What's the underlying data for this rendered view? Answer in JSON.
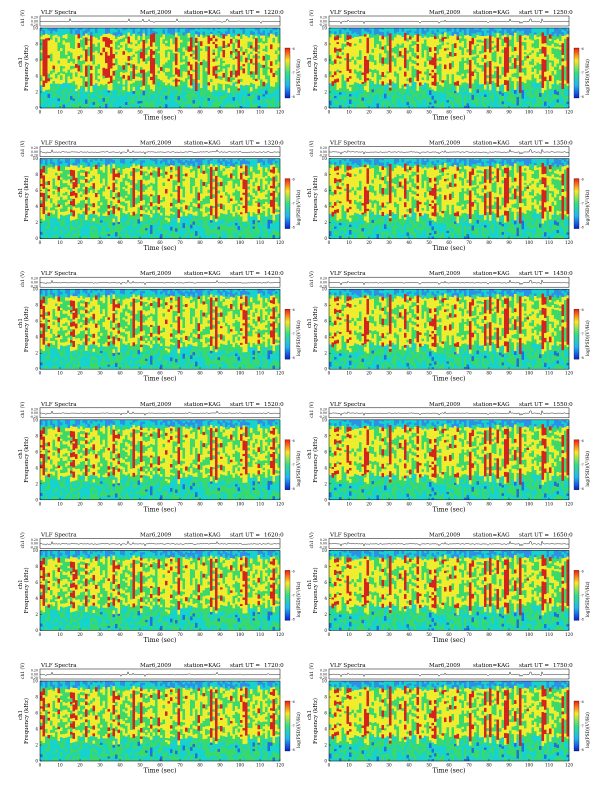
{
  "header_common": {
    "title": "VLF Spectra",
    "date": "Mar6,2009",
    "station": "station=KAG",
    "start_prefix": "start  UT  =",
    "xlabel": "Time  (sec)",
    "ylabel_left_a": "Frequency  (kHz)",
    "ylabel_left_b": "ch1",
    "ylabel_right_a": "Frequency  (kHz)",
    "ylabel_right_b": "ch1",
    "waveform_label": "ch1 (V)",
    "colorbar_label": "log(PSD)(V²/Hz)"
  },
  "chart_data": [
    {
      "type": "heatmap",
      "panel": "1220",
      "start_time": "1220:0",
      "x_ticks": [
        0,
        10,
        20,
        30,
        40,
        50,
        60,
        70,
        80,
        90,
        100,
        110,
        120
      ],
      "y_ticks": [
        0,
        2,
        4,
        6,
        8,
        10
      ],
      "waveform_ticks": [
        "0.20",
        "0.00",
        "-0.20"
      ],
      "colorbar_ticks": [
        "-6",
        "-7",
        "-8"
      ],
      "xlim": [
        0,
        120
      ],
      "ylim": [
        0,
        10
      ]
    },
    {
      "type": "heatmap",
      "panel": "1250",
      "start_time": "1250:0",
      "x_ticks": [
        0,
        10,
        20,
        30,
        40,
        50,
        60,
        70,
        80,
        90,
        100,
        110,
        120
      ],
      "y_ticks": [
        0,
        2,
        4,
        6,
        8,
        10
      ],
      "waveform_ticks": [
        "0.20",
        "0.00",
        "-0.20"
      ],
      "colorbar_ticks": [
        "-6",
        "-7",
        "-8"
      ],
      "xlim": [
        0,
        120
      ],
      "ylim": [
        0,
        10
      ]
    },
    {
      "type": "heatmap",
      "panel": "1320",
      "start_time": "1320:0",
      "x_ticks": [
        0,
        10,
        20,
        30,
        40,
        50,
        60,
        70,
        80,
        90,
        100,
        110,
        120
      ],
      "y_ticks": [
        0,
        2,
        4,
        6,
        8,
        10
      ],
      "waveform_ticks": [
        "0.20",
        "0.00",
        "-0.20"
      ],
      "colorbar_ticks": [
        "-6",
        "-7",
        "-8"
      ],
      "xlim": [
        0,
        120
      ],
      "ylim": [
        0,
        10
      ]
    },
    {
      "type": "heatmap",
      "panel": "1350",
      "start_time": "1350:0",
      "x_ticks": [
        0,
        10,
        20,
        30,
        40,
        50,
        60,
        70,
        80,
        90,
        100,
        110,
        120
      ],
      "y_ticks": [
        0,
        2,
        4,
        6,
        8,
        10
      ],
      "waveform_ticks": [
        "0.20",
        "0.00",
        "-0.20"
      ],
      "colorbar_ticks": [
        "-6",
        "-7",
        "-8"
      ],
      "xlim": [
        0,
        120
      ],
      "ylim": [
        0,
        10
      ]
    },
    {
      "type": "heatmap",
      "panel": "1420",
      "start_time": "1420:0",
      "x_ticks": [
        0,
        10,
        20,
        30,
        40,
        50,
        60,
        70,
        80,
        90,
        100,
        110,
        120
      ],
      "y_ticks": [
        0,
        2,
        4,
        6,
        8,
        10
      ],
      "waveform_ticks": [
        "0.20",
        "0.00",
        "-0.20"
      ],
      "colorbar_ticks": [
        "-6",
        "-7",
        "-8"
      ],
      "xlim": [
        0,
        120
      ],
      "ylim": [
        0,
        10
      ]
    },
    {
      "type": "heatmap",
      "panel": "1450",
      "start_time": "1450:0",
      "x_ticks": [
        0,
        10,
        20,
        30,
        40,
        50,
        60,
        70,
        80,
        90,
        100,
        110,
        120
      ],
      "y_ticks": [
        0,
        2,
        4,
        6,
        8,
        10
      ],
      "waveform_ticks": [
        "0.20",
        "0.00",
        "-0.20"
      ],
      "colorbar_ticks": [
        "-6",
        "-7",
        "-8"
      ],
      "xlim": [
        0,
        120
      ],
      "ylim": [
        0,
        10
      ]
    },
    {
      "type": "heatmap",
      "panel": "1520",
      "start_time": "1520:0",
      "x_ticks": [
        0,
        10,
        20,
        30,
        40,
        50,
        60,
        70,
        80,
        90,
        100,
        110,
        120
      ],
      "y_ticks": [
        0,
        2,
        4,
        6,
        8,
        10
      ],
      "waveform_ticks": [
        "0.20",
        "0.00",
        "-0.20"
      ],
      "colorbar_ticks": [
        "-6",
        "-7",
        "-8"
      ],
      "xlim": [
        0,
        120
      ],
      "ylim": [
        0,
        10
      ]
    },
    {
      "type": "heatmap",
      "panel": "1550",
      "start_time": "1550:0",
      "x_ticks": [
        0,
        10,
        20,
        30,
        40,
        50,
        60,
        70,
        80,
        90,
        100,
        110,
        120
      ],
      "y_ticks": [
        0,
        2,
        4,
        6,
        8,
        10
      ],
      "waveform_ticks": [
        "0.20",
        "0.00",
        "-0.20"
      ],
      "colorbar_ticks": [
        "-6",
        "-7",
        "-8"
      ],
      "xlim": [
        0,
        120
      ],
      "ylim": [
        0,
        10
      ]
    },
    {
      "type": "heatmap",
      "panel": "1620",
      "start_time": "1620:0",
      "x_ticks": [
        0,
        10,
        20,
        30,
        40,
        50,
        60,
        70,
        80,
        90,
        100,
        110,
        120
      ],
      "y_ticks": [
        0,
        2,
        4,
        6,
        8,
        10
      ],
      "waveform_ticks": [
        "0.20",
        "0.00",
        "-0.20"
      ],
      "colorbar_ticks": [
        "-6",
        "-7",
        "-8"
      ],
      "xlim": [
        0,
        120
      ],
      "ylim": [
        0,
        10
      ]
    },
    {
      "type": "heatmap",
      "panel": "1650",
      "start_time": "1650:0",
      "x_ticks": [
        0,
        10,
        20,
        30,
        40,
        50,
        60,
        70,
        80,
        90,
        100,
        110,
        120
      ],
      "y_ticks": [
        0,
        2,
        4,
        6,
        8,
        10
      ],
      "waveform_ticks": [
        "0.20",
        "0.00",
        "-0.20"
      ],
      "colorbar_ticks": [
        "-6",
        "-7",
        "-8"
      ],
      "xlim": [
        0,
        120
      ],
      "ylim": [
        0,
        10
      ]
    },
    {
      "type": "heatmap",
      "panel": "1720",
      "start_time": "1720:0",
      "x_ticks": [
        0,
        10,
        20,
        30,
        40,
        50,
        60,
        70,
        80,
        90,
        100,
        110,
        120
      ],
      "y_ticks": [
        0,
        2,
        4,
        6,
        8,
        10
      ],
      "waveform_ticks": [
        "0.20",
        "0.00",
        "-0.20"
      ],
      "colorbar_ticks": [
        "-6",
        "-7",
        "-8"
      ],
      "xlim": [
        0,
        120
      ],
      "ylim": [
        0,
        10
      ]
    },
    {
      "type": "heatmap",
      "panel": "1750",
      "start_time": "1750:0",
      "x_ticks": [
        0,
        10,
        20,
        30,
        40,
        50,
        60,
        70,
        80,
        90,
        100,
        110,
        120
      ],
      "y_ticks": [
        0,
        2,
        4,
        6,
        8,
        10
      ],
      "waveform_ticks": [
        "0.20",
        "0.00",
        "-0.20"
      ],
      "colorbar_ticks": [
        "-6",
        "-7",
        "-8"
      ],
      "xlim": [
        0,
        120
      ],
      "ylim": [
        0,
        10
      ]
    }
  ],
  "colors": {
    "background": "#ffffff",
    "cold": "#16d3cf",
    "mid": "#3ad96a",
    "warm": "#f1ec2c",
    "hot": "#d5231e",
    "band_top": "#2e8fe8",
    "colorbar_stops": [
      "#f41914",
      "#fbe626",
      "#34de86",
      "#23b5f2",
      "#0b1fd0"
    ]
  }
}
